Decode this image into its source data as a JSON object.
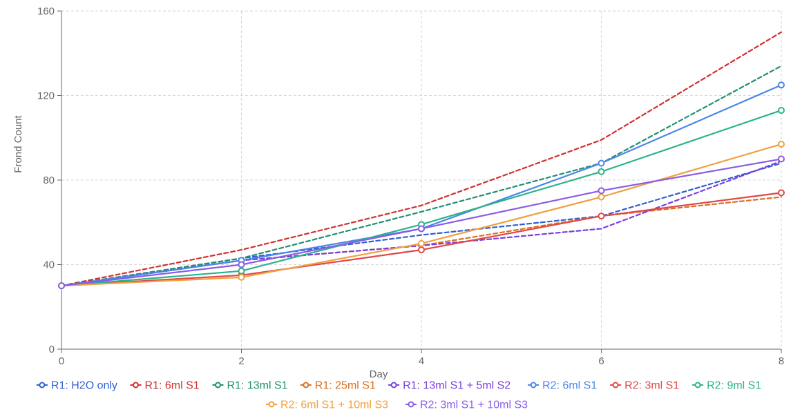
{
  "chart_data": {
    "type": "line",
    "title": "",
    "xlabel": "Day",
    "ylabel": "Frond Count",
    "xlim": [
      0,
      8
    ],
    "ylim": [
      0,
      160
    ],
    "x_ticks": [
      "0",
      "2",
      "4",
      "6",
      "8"
    ],
    "y_ticks": [
      "0",
      "40",
      "80",
      "120",
      "160"
    ],
    "grid": true,
    "legend_position": "bottom",
    "series": [
      {
        "name": "R1: H2O only",
        "color": "#2f5fd0",
        "dash": true,
        "x": [
          0,
          2,
          4,
          6,
          8
        ],
        "values": [
          30,
          43,
          54,
          63,
          88
        ]
      },
      {
        "name": "R1: 6ml S1",
        "color": "#d03030",
        "dash": true,
        "x": [
          0,
          2,
          4,
          6,
          8
        ],
        "values": [
          30,
          47,
          68,
          99,
          150
        ]
      },
      {
        "name": "R1: 13ml S1",
        "color": "#1f9070",
        "dash": true,
        "x": [
          0,
          2,
          4,
          6,
          8
        ],
        "values": [
          30,
          43,
          65,
          88,
          134
        ]
      },
      {
        "name": "R1: 25ml S1",
        "color": "#d87020",
        "dash": true,
        "x": [
          0,
          2,
          4,
          6,
          8
        ],
        "values": [
          30,
          42,
          49,
          63,
          72
        ]
      },
      {
        "name": "R1: 13ml S1 + 5ml S2",
        "color": "#7a3ee0",
        "dash": true,
        "x": [
          0,
          2,
          4,
          6,
          8
        ],
        "values": [
          30,
          42,
          49,
          57,
          89
        ]
      },
      {
        "name": "R2: 6ml S1",
        "color": "#4a86e8",
        "dash": false,
        "x": [
          0,
          2,
          4,
          6,
          8
        ],
        "values": [
          30,
          42,
          57,
          88,
          125
        ]
      },
      {
        "name": "R2: 3ml S1",
        "color": "#e04848",
        "dash": false,
        "x": [
          0,
          2,
          4,
          6,
          8
        ],
        "values": [
          30,
          35,
          47,
          63,
          74
        ]
      },
      {
        "name": "R2: 9ml S1",
        "color": "#2bb38a",
        "dash": false,
        "x": [
          0,
          2,
          4,
          6,
          8
        ],
        "values": [
          30,
          37,
          59,
          84,
          113
        ]
      },
      {
        "name": "R2: 6ml S1 + 10ml S3",
        "color": "#f0a040",
        "dash": false,
        "x": [
          0,
          2,
          4,
          6,
          8
        ],
        "values": [
          30,
          34,
          50,
          72,
          97
        ]
      },
      {
        "name": "R2: 3ml S1 + 10ml S3",
        "color": "#8a5ce6",
        "dash": false,
        "x": [
          0,
          2,
          4,
          6,
          8
        ],
        "values": [
          30,
          40,
          57,
          75,
          90
        ]
      }
    ]
  }
}
